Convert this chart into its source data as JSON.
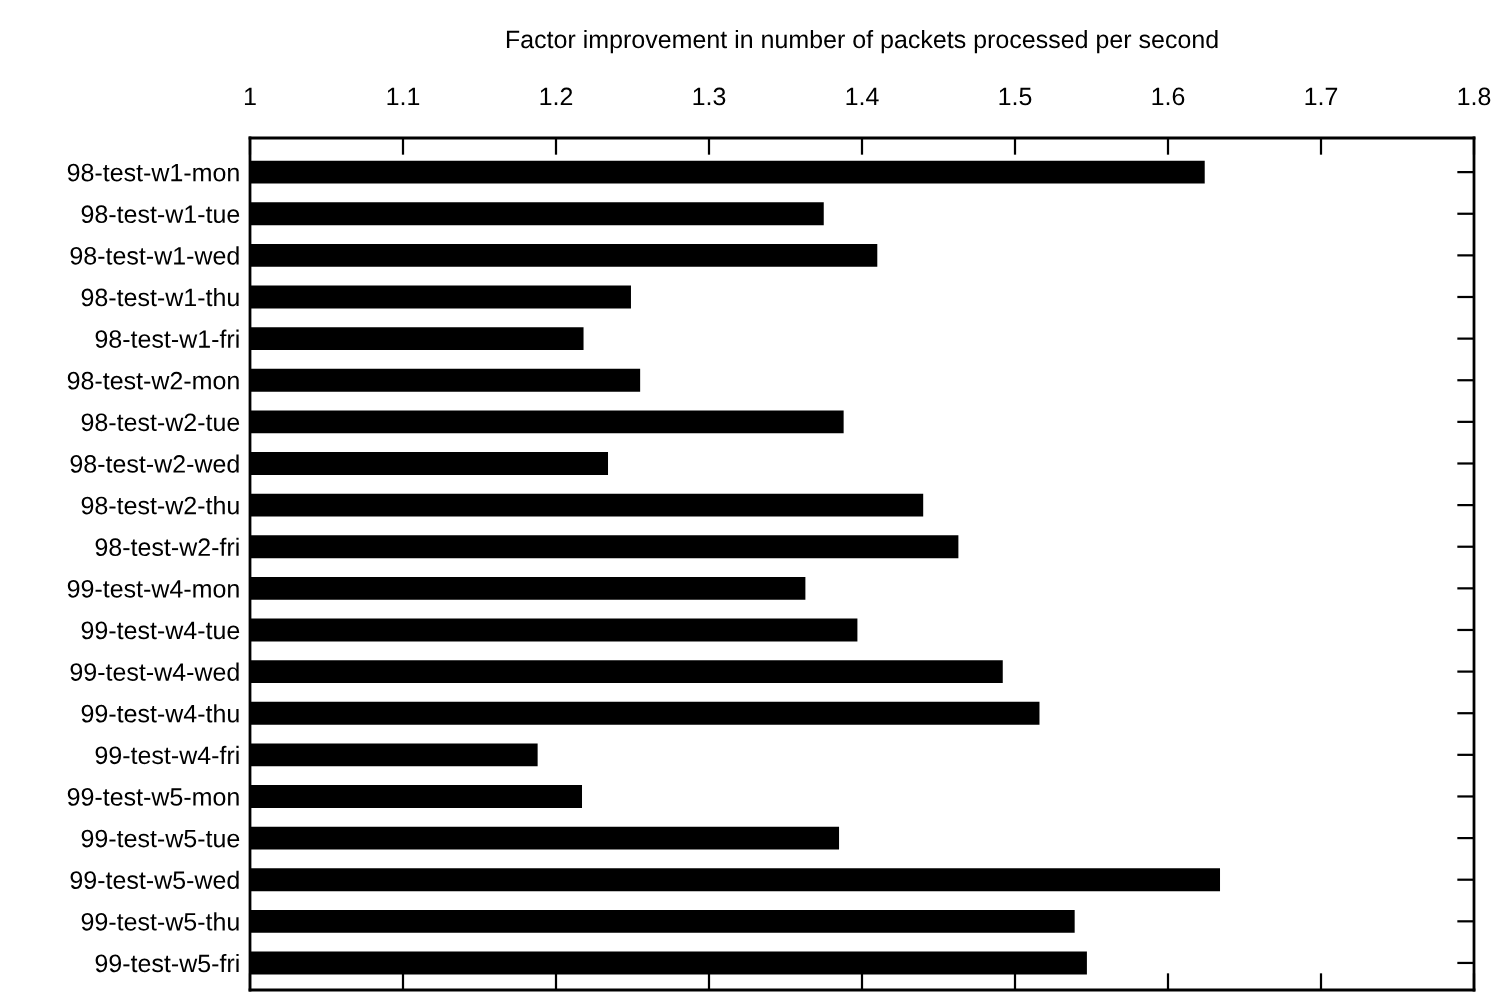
{
  "chart_data": {
    "type": "bar",
    "orientation": "horizontal",
    "xlabel": "Factor improvement in number of packets processed per second",
    "categories": [
      "98-test-w1-mon",
      "98-test-w1-tue",
      "98-test-w1-wed",
      "98-test-w1-thu",
      "98-test-w1-fri",
      "98-test-w2-mon",
      "98-test-w2-tue",
      "98-test-w2-wed",
      "98-test-w2-thu",
      "98-test-w2-fri",
      "99-test-w4-mon",
      "99-test-w4-tue",
      "99-test-w4-wed",
      "99-test-w4-thu",
      "99-test-w4-fri",
      "99-test-w5-mon",
      "99-test-w5-tue",
      "99-test-w5-wed",
      "99-test-w5-thu",
      "99-test-w5-fri"
    ],
    "values": [
      1.624,
      1.375,
      1.41,
      1.249,
      1.218,
      1.255,
      1.388,
      1.234,
      1.44,
      1.463,
      1.363,
      1.397,
      1.492,
      1.516,
      1.188,
      1.217,
      1.385,
      1.634,
      1.539,
      1.547
    ],
    "color": "#000000",
    "xlim": [
      1,
      1.8
    ],
    "xticks": [
      1,
      1.1,
      1.2,
      1.3,
      1.4,
      1.5,
      1.6,
      1.7,
      1.8
    ],
    "grid": false
  }
}
